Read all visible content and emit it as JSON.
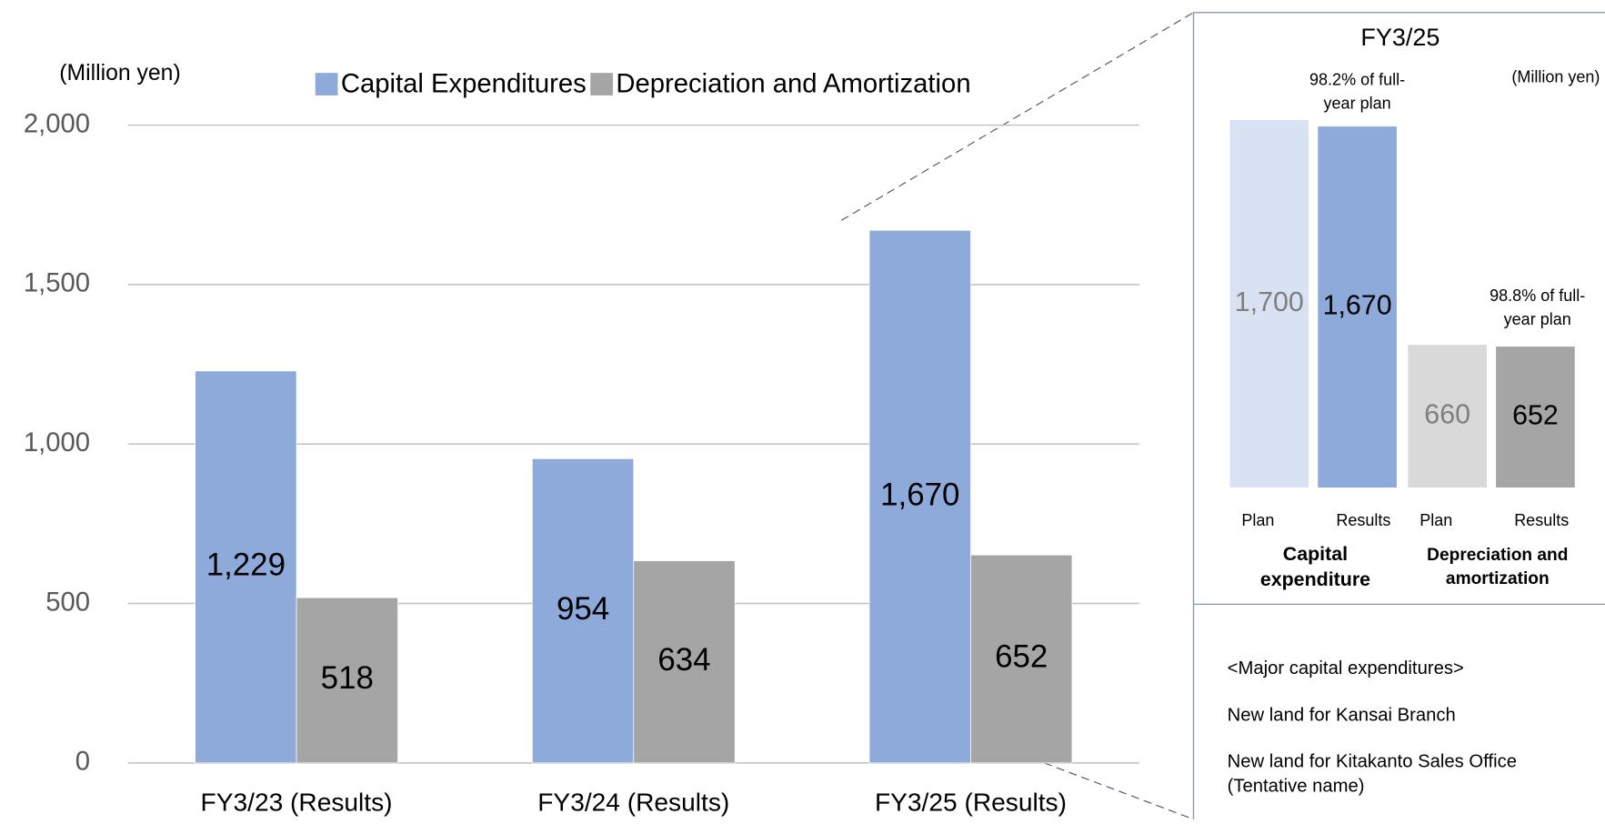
{
  "chart_data": [
    {
      "type": "bar",
      "unit_label": "(Million yen)",
      "categories": [
        "FY3/23 (Results)",
        "FY3/24 (Results)",
        "FY3/25 (Results)"
      ],
      "series": [
        {
          "name": "Capital Expenditures",
          "color": "#8eaadb",
          "values": [
            1229,
            954,
            1670
          ],
          "value_labels": [
            "1,229",
            "954",
            "1,670"
          ]
        },
        {
          "name": "Depreciation and Amortization",
          "color": "#a5a5a5",
          "values": [
            518,
            634,
            652
          ],
          "value_labels": [
            "518",
            "634",
            "652"
          ]
        }
      ],
      "ylim": [
        0,
        2000
      ],
      "yticks": [
        0,
        500,
        {
          "value": 1000,
          "label": "1,000"
        },
        {
          "value": 1500,
          "label": "1,500"
        },
        {
          "value": 2000,
          "label": "2,000"
        }
      ],
      "grid": true,
      "legend": "top"
    },
    {
      "type": "bar",
      "title": "FY3/25",
      "unit_label": "(Million yen)",
      "categories": [
        "Plan",
        "Results",
        "Plan",
        "Results"
      ],
      "values": [
        1700,
        1670,
        660,
        652
      ],
      "value_labels": [
        "1,700",
        "1,670",
        "660",
        "652"
      ],
      "colors": [
        "#d9e2f3",
        "#8eaadb",
        "#d9d9d9",
        "#a5a5a5"
      ],
      "groups": [
        "Capital expenditure",
        "Depreciation and amortization"
      ],
      "annotations": [
        "98.2% of full-year plan",
        "98.8% of full-year plan"
      ],
      "notes": [
        "<Major capital expenditures>",
        "New land for Kansai Branch",
        "New land for Kitakanto Sales Office (Tentative name)"
      ]
    }
  ]
}
